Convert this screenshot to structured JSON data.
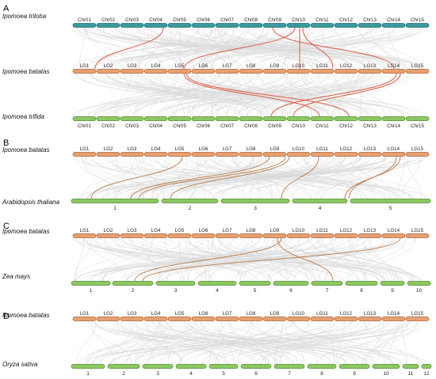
{
  "colors": {
    "teal": "#3a9aa0",
    "orange": "#e8a070",
    "green": "#8cc860",
    "background_links": "#d8d8d8",
    "highlight_links": "#d84a30",
    "highlight_links_brown": "#b77a48"
  },
  "panels": [
    {
      "letter": "A",
      "tracks": [
        {
          "species": "Ipomoea triloba",
          "color": "teal",
          "labels": [
            "Chr01",
            "Chr02",
            "Chr03",
            "Chr04",
            "Chr05",
            "Chr06",
            "Chr07",
            "Chr08",
            "Chr09",
            "Chr10",
            "Chr11",
            "Chr12",
            "Chr13",
            "Chr14",
            "Chr15"
          ]
        },
        {
          "species": "Ipomoea batatas",
          "color": "orange",
          "labels": [
            "LG1",
            "LG2",
            "LG3",
            "LG4",
            "LG5",
            "LG6",
            "LG7",
            "LG8",
            "LG9",
            "LG10",
            "LG11",
            "LG12",
            "LG13",
            "LG14",
            "LG15"
          ]
        },
        {
          "species": "Ipomoea trifida",
          "color": "green",
          "labels": [
            "Chr01",
            "Chr02",
            "Chr03",
            "Chr04",
            "Chr05",
            "Chr06",
            "Chr07",
            "Chr08",
            "Chr09",
            "Chr10",
            "Chr11",
            "Chr12",
            "Chr13",
            "Chr14",
            "Chr15"
          ]
        }
      ]
    },
    {
      "letter": "B",
      "tracks": [
        {
          "species": "Ipomoea batatas",
          "color": "orange",
          "labels": [
            "LG1",
            "LG2",
            "LG3",
            "LG4",
            "LG5",
            "LG6",
            "LG7",
            "LG8",
            "LG9",
            "LG10",
            "LG11",
            "LG12",
            "LG13",
            "LG14",
            "LG15"
          ]
        },
        {
          "species": "Arabidopsis thaliana",
          "color": "green",
          "labels": [
            "1",
            "2",
            "3",
            "4",
            "5"
          ]
        }
      ]
    },
    {
      "letter": "C",
      "tracks": [
        {
          "species": "Ipomoea batatas",
          "color": "orange",
          "labels": [
            "LG1",
            "LG2",
            "LG3",
            "LG4",
            "LG5",
            "LG6",
            "LG7",
            "LG8",
            "LG9",
            "LG10",
            "LG11",
            "LG12",
            "LG13",
            "LG14",
            "LG15"
          ]
        },
        {
          "species": "Zea mays",
          "color": "green",
          "labels": [
            "1",
            "2",
            "3",
            "4",
            "5",
            "6",
            "7",
            "8",
            "9",
            "10"
          ]
        }
      ]
    },
    {
      "letter": "D",
      "tracks": [
        {
          "species": "Ipomoea batatas",
          "color": "orange",
          "labels": [
            "LG1",
            "LG2",
            "LG3",
            "LG4",
            "LG5",
            "LG6",
            "LG7",
            "LG8",
            "LG9",
            "LG10",
            "LG11",
            "LG12",
            "LG13",
            "LG14",
            "LG15"
          ]
        },
        {
          "species": "Oryza sativa",
          "color": "green",
          "labels": [
            "1",
            "2",
            "3",
            "4",
            "5",
            "6",
            "7",
            "8",
            "9",
            "10",
            "11",
            "12"
          ]
        }
      ]
    }
  ]
}
